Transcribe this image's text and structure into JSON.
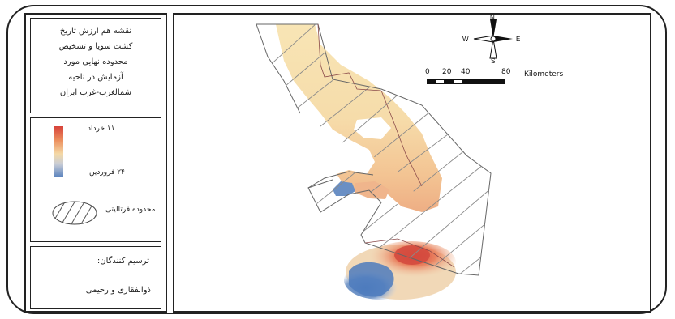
{
  "title": "نقشه هم ارزش تاریخ کشت سویا و تشخیص محدوده نهایی مورد آزمایش در ناحیه شمالغرب-غرب ایران",
  "title_lines": [
    "نقشه هم ارزش تاریخ",
    "کشت سویا و تشخیص",
    "محدوده نهایی مورد",
    "آزمایش در ناحیه",
    "شمالغرب-غرب ایران"
  ],
  "legend": {
    "high_label": "۱۱ خرداد",
    "low_label": "۲۴ فروردین",
    "hatch_label": "محدوده فرتالیتی",
    "gradient_colors": [
      "#d7423a",
      "#ec8f5e",
      "#f4d9a6",
      "#c9cdd6",
      "#5f86bf"
    ]
  },
  "credits": {
    "title": "ترسیم کنندگان:",
    "names": "ذوالفقاری و رحیمی"
  },
  "north_arrow": {
    "n": "N",
    "s": "S",
    "e": "E",
    "w": "W"
  },
  "scale_bar": {
    "ticks": [
      "0",
      "20",
      "40",
      "80"
    ],
    "units": "Kilometers"
  }
}
